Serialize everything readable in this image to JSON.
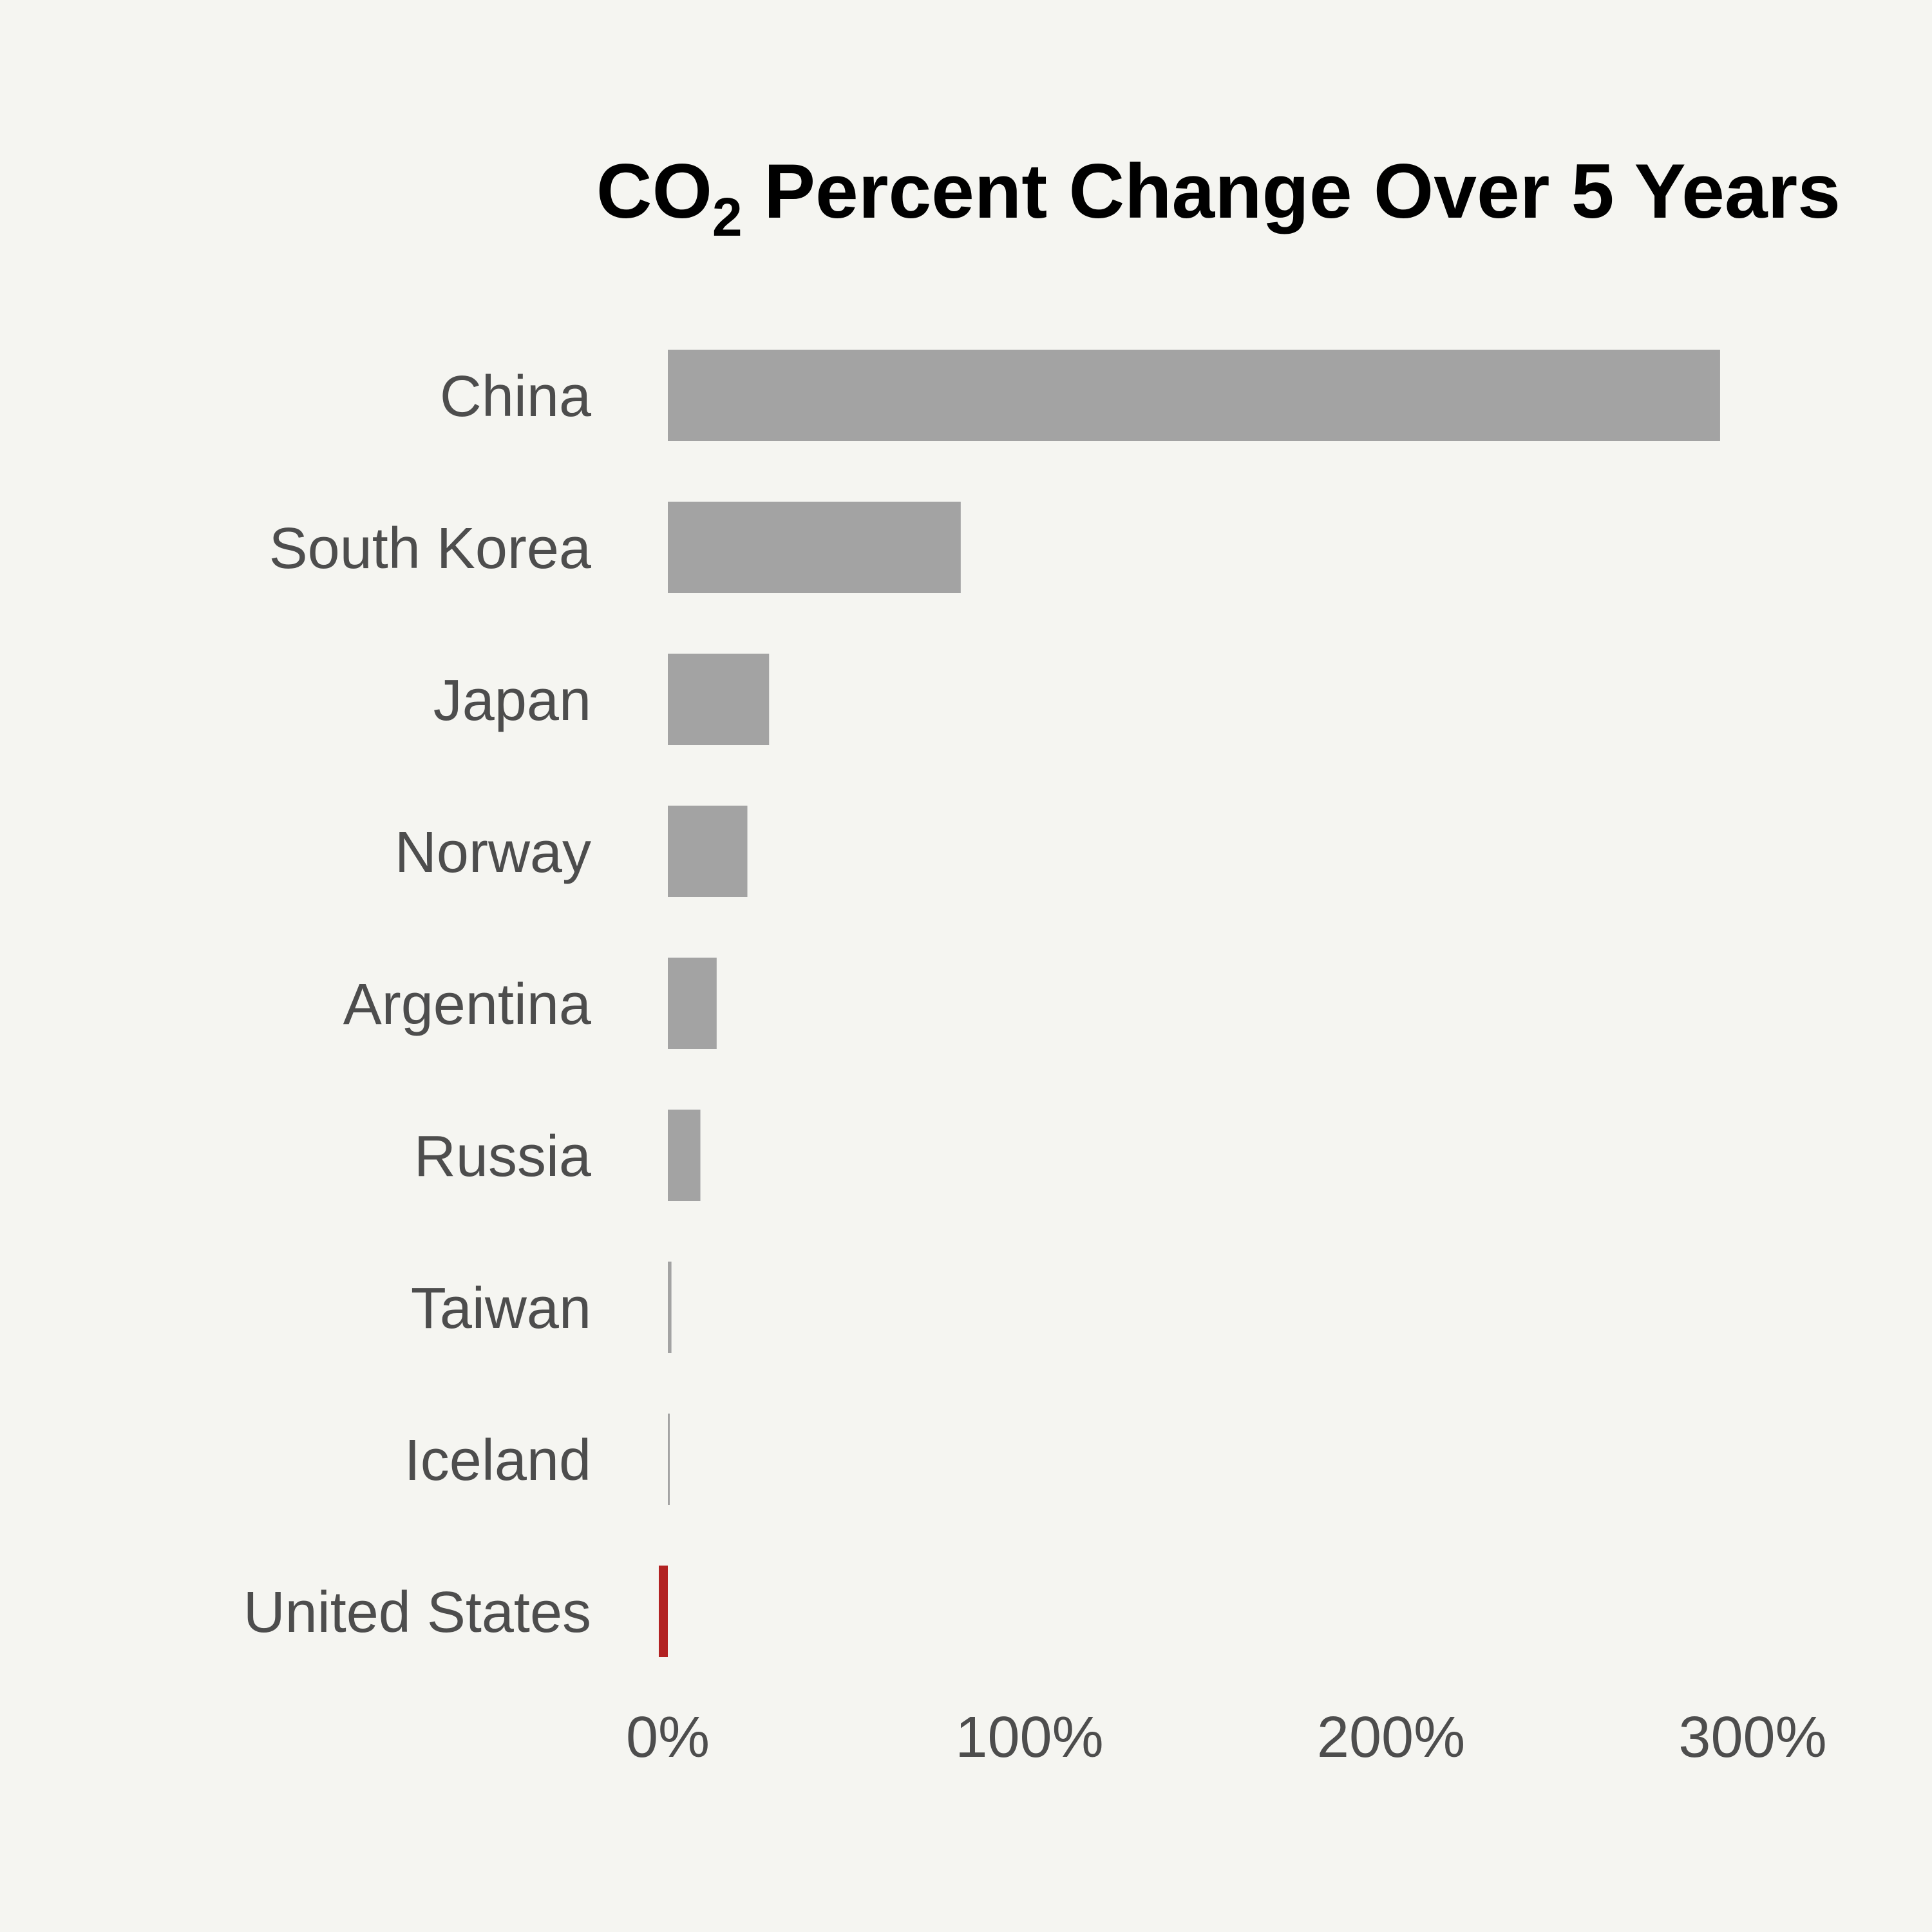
{
  "chart_data": {
    "type": "bar",
    "orientation": "horizontal",
    "title": {
      "prefix": "CO",
      "subscript": "2",
      "suffix": " Percent Change Over 5 Years"
    },
    "categories": [
      "China",
      "South Korea",
      "Japan",
      "Norway",
      "Argentina",
      "Russia",
      "Taiwan",
      "Iceland",
      "United States"
    ],
    "values": [
      291,
      81,
      28,
      22,
      13.5,
      9,
      1,
      0.5,
      -2.5
    ],
    "highlight": [
      "United States"
    ],
    "xlim": [
      0,
      300
    ],
    "xticks": [
      0,
      100,
      200,
      300
    ],
    "xtick_labels": [
      "0%",
      "100%",
      "200%",
      "300%"
    ],
    "xlabel": "",
    "ylabel": "",
    "grid": false,
    "legend": "none",
    "colors": {
      "bar": "#a3a3a3",
      "highlight": "#b22222",
      "background": "#f5f5f1",
      "label_text": "#4d4d4d",
      "title_text": "#000000"
    }
  }
}
